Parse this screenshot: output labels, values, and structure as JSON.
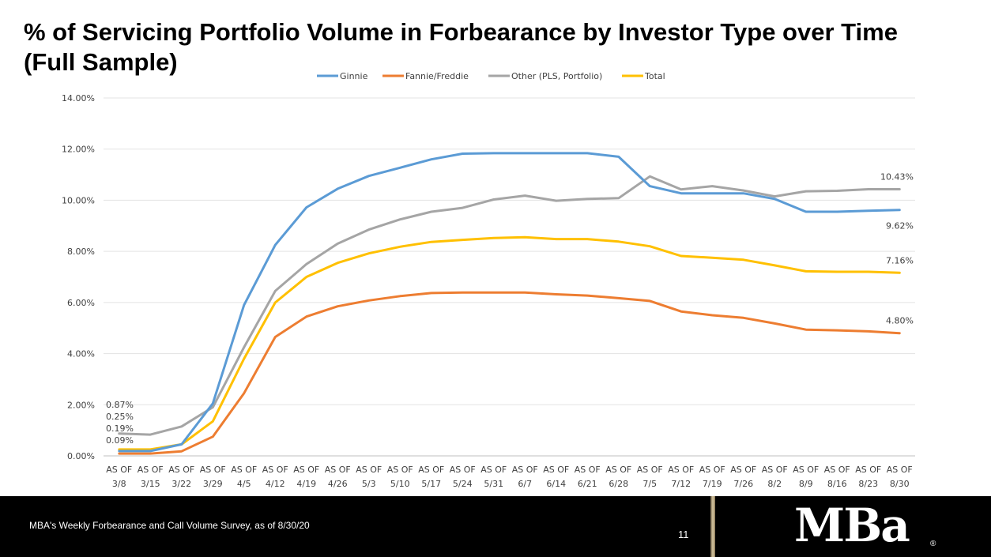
{
  "slide": {
    "title_line1": "% of Servicing Portfolio Volume in Forbearance by Investor Type over Time",
    "title_line2": "(Full Sample)"
  },
  "footer": {
    "source": "MBA's Weekly Forbearance and Call Volume Survey, as of 8/30/20",
    "page_number": "11",
    "logo_text": "MBa",
    "registered_mark": "®"
  },
  "chart_data": {
    "type": "line",
    "title": "",
    "xlabel": "",
    "ylabel": "",
    "ylim": [
      0,
      14
    ],
    "y_ticks": [
      0,
      2,
      4,
      6,
      8,
      10,
      12,
      14
    ],
    "y_tick_format": "percent_2dp",
    "grid": true,
    "legend_position": "top",
    "category_prefix": "AS OF",
    "categories": [
      "3/8",
      "3/15",
      "3/22",
      "3/29",
      "4/5",
      "4/12",
      "4/19",
      "4/26",
      "5/3",
      "5/10",
      "5/17",
      "5/24",
      "5/31",
      "6/7",
      "6/14",
      "6/21",
      "6/28",
      "7/5",
      "7/12",
      "7/19",
      "7/26",
      "8/2",
      "8/9",
      "8/16",
      "8/23",
      "8/30"
    ],
    "series": [
      {
        "name": "Ginnie",
        "color": "#5B9BD5",
        "values": [
          0.19,
          0.19,
          0.45,
          2.05,
          5.9,
          8.25,
          9.72,
          10.45,
          10.95,
          11.27,
          11.6,
          11.82,
          11.84,
          11.84,
          11.84,
          11.84,
          11.7,
          10.55,
          10.27,
          10.27,
          10.27,
          10.05,
          9.55,
          9.55,
          9.59,
          9.62
        ]
      },
      {
        "name": "Fannie/Freddie",
        "color": "#ED7D31",
        "values": [
          0.09,
          0.09,
          0.18,
          0.75,
          2.45,
          4.65,
          5.45,
          5.85,
          6.08,
          6.25,
          6.37,
          6.39,
          6.39,
          6.39,
          6.32,
          6.27,
          6.17,
          6.06,
          5.65,
          5.5,
          5.4,
          5.18,
          4.94,
          4.91,
          4.87,
          4.8
        ]
      },
      {
        "name": "Other (PLS, Portfolio)",
        "color": "#A5A5A5",
        "values": [
          0.87,
          0.83,
          1.15,
          1.9,
          4.25,
          6.45,
          7.5,
          8.3,
          8.85,
          9.25,
          9.55,
          9.7,
          10.03,
          10.18,
          9.98,
          10.05,
          10.08,
          10.93,
          10.42,
          10.55,
          10.38,
          10.15,
          10.35,
          10.37,
          10.43,
          10.43
        ]
      },
      {
        "name": "Total",
        "color": "#FFC000",
        "values": [
          0.25,
          0.25,
          0.45,
          1.35,
          3.8,
          6.0,
          7.0,
          7.55,
          7.92,
          8.18,
          8.37,
          8.45,
          8.52,
          8.55,
          8.48,
          8.48,
          8.38,
          8.2,
          7.82,
          7.75,
          7.67,
          7.45,
          7.22,
          7.2,
          7.2,
          7.16
        ]
      }
    ],
    "data_labels": {
      "start": [
        {
          "series": "Other (PLS, Portfolio)",
          "text": "0.87%"
        },
        {
          "series": "Total",
          "text": "0.25%"
        },
        {
          "series": "Ginnie",
          "text": "0.19%"
        },
        {
          "series": "Fannie/Freddie",
          "text": "0.09%"
        }
      ],
      "end": [
        {
          "series": "Other (PLS, Portfolio)",
          "text": "10.43%"
        },
        {
          "series": "Ginnie",
          "text": "9.62%"
        },
        {
          "series": "Total",
          "text": "7.16%"
        },
        {
          "series": "Fannie/Freddie",
          "text": "4.80%"
        }
      ]
    }
  }
}
